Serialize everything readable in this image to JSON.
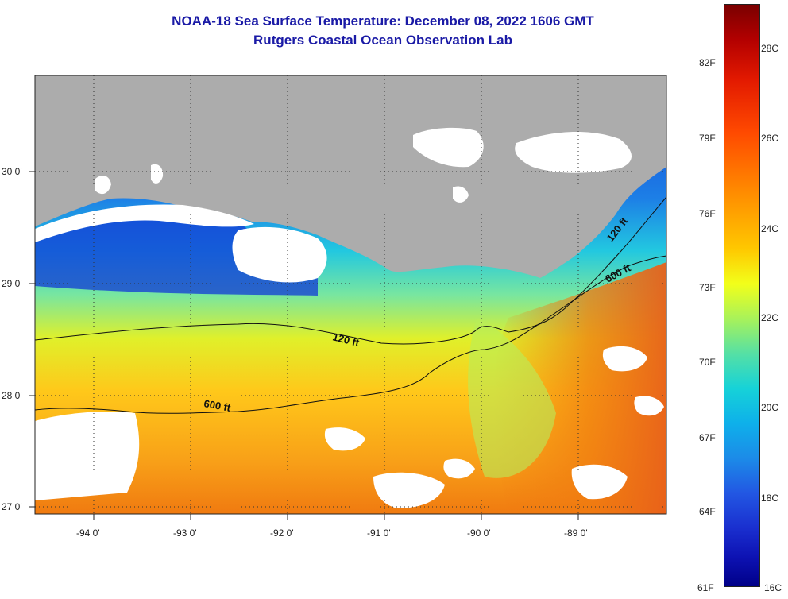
{
  "title": {
    "line1": "NOAA-18 Sea Surface Temperature:  December 08, 2022 1606 GMT",
    "line2": "Rutgers Coastal Ocean Observation Lab"
  },
  "map": {
    "lon_labels": [
      "-94 0'",
      "-93 0'",
      "-92 0'",
      "-91 0'",
      "-90 0'",
      "-89 0'"
    ],
    "lat_labels": [
      "30 0'",
      "29 0'",
      "28 0'",
      "27 0'"
    ],
    "contour_labels": {
      "c120_west": "120 ft",
      "c120_east": "120 ft",
      "c600_west": "600 ft",
      "c600_east": "600 ft"
    },
    "colors": {
      "land": "#acacac",
      "cloud": "#ffffff",
      "cold": "#1238d6",
      "warm": "#f07a10"
    }
  },
  "colorbar": {
    "fahrenheit": [
      "82F",
      "79F",
      "76F",
      "73F",
      "70F",
      "67F",
      "64F",
      "61F"
    ],
    "celsius": [
      "28C",
      "26C",
      "24C",
      "22C",
      "20C",
      "18C",
      "16C"
    ]
  }
}
